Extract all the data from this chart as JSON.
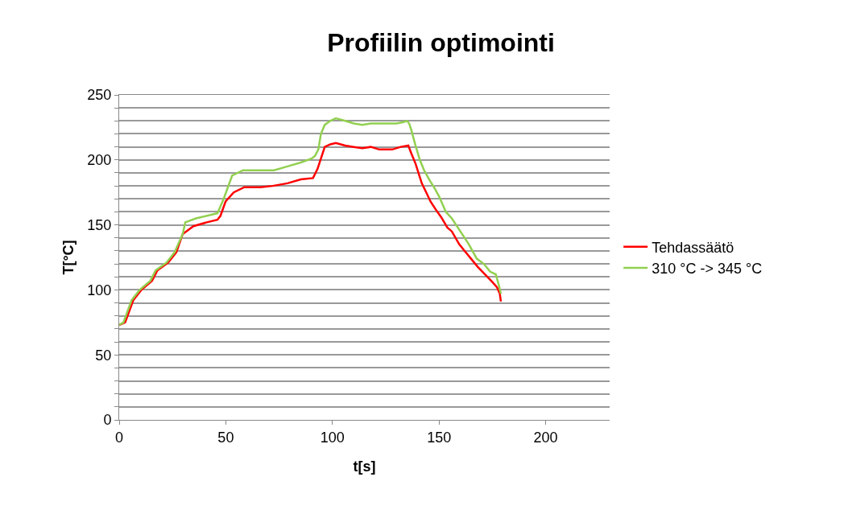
{
  "chart_data": {
    "type": "line",
    "title": "Profiilin optimointi",
    "xlabel": "t[s]",
    "ylabel": "T[°C]",
    "xlim": [
      0,
      230
    ],
    "xticks": [
      0,
      50,
      100,
      150,
      200
    ],
    "ylim": [
      0,
      250
    ],
    "yticks": [
      {
        "value": 0,
        "label": "0"
      },
      {
        "value": 10,
        "label": null
      },
      {
        "value": 20,
        "label": null
      },
      {
        "value": 30,
        "label": null
      },
      {
        "value": 40,
        "label": null
      },
      {
        "value": 50,
        "label": "50"
      },
      {
        "value": 60,
        "label": null
      },
      {
        "value": 70,
        "label": null
      },
      {
        "value": 80,
        "label": null
      },
      {
        "value": 90,
        "label": null
      },
      {
        "value": 100,
        "label": "100"
      },
      {
        "value": 110,
        "label": null
      },
      {
        "value": 120,
        "label": null
      },
      {
        "value": 130,
        "label": null
      },
      {
        "value": 140,
        "label": null
      },
      {
        "value": 150,
        "label": "150"
      },
      {
        "value": 160,
        "label": null
      },
      {
        "value": 170,
        "label": null
      },
      {
        "value": 180,
        "label": null
      },
      {
        "value": 190,
        "label": null
      },
      {
        "value": 200,
        "label": "200"
      },
      {
        "value": 210,
        "label": null
      },
      {
        "value": 220,
        "label": null
      },
      {
        "value": 230,
        "label": null
      },
      {
        "value": 240,
        "label": null
      },
      {
        "value": 250,
        "label": "250"
      }
    ],
    "grid": "y",
    "legend": "right",
    "marker": "none",
    "line_style": "solid",
    "series": [
      {
        "name": "Tehdassäätö",
        "color": "#ff0000",
        "x": [
          0,
          2.8,
          6.6,
          10.4,
          15.4,
          17.9,
          23,
          26.8,
          29.8,
          34.8,
          41.1,
          46.1,
          47.5,
          49.9,
          53.7,
          58.7,
          66.3,
          72,
          78.9,
          85.2,
          90.9,
          93,
          96.4,
          99,
          101.6,
          106,
          110,
          114,
          118,
          122,
          128,
          132,
          135.6,
          137,
          139,
          141.9,
          144,
          146,
          148.8,
          151,
          153.9,
          156,
          159.5,
          162,
          165,
          168,
          172.1,
          175,
          177.2,
          178.5,
          179
        ],
        "values": [
          73,
          75,
          92,
          100,
          107,
          115,
          121,
          129,
          143,
          149,
          152,
          154,
          157,
          168,
          175,
          179,
          179,
          180,
          182,
          185,
          186,
          193,
          210,
          212,
          213,
          211,
          210,
          209,
          210,
          208,
          208,
          210,
          211,
          205,
          197,
          182,
          175,
          168,
          161,
          156,
          148,
          145,
          135,
          130,
          124,
          118,
          111,
          106,
          102,
          97,
          91
        ]
      },
      {
        "name": "310 °C -> 345 °C",
        "color": "#92d050",
        "x": [
          0,
          2,
          5.8,
          9.6,
          14.6,
          17.1,
          22.2,
          26,
          29.8,
          31,
          36,
          46.1,
          49,
          53,
          58.1,
          66.3,
          72.6,
          78.9,
          85.2,
          90.2,
          91.8,
          93.4,
          94.6,
          96.4,
          99,
          101.6,
          106,
          110,
          114,
          118,
          126,
          130,
          133,
          135,
          136,
          137,
          138.8,
          141,
          143,
          145.7,
          148,
          150,
          153.2,
          156,
          158,
          160.8,
          164,
          167.7,
          171,
          174,
          176.6,
          178,
          179
        ],
        "values": [
          73,
          75,
          92,
          100,
          107,
          115,
          121,
          129,
          143,
          152,
          155,
          159,
          170,
          188,
          192,
          192,
          192,
          195,
          198,
          201,
          203,
          208,
          220,
          227,
          230,
          232,
          230,
          228,
          227,
          228,
          228,
          228,
          229,
          230,
          228,
          223,
          212,
          200,
          192,
          184,
          178,
          172,
          160,
          155,
          150,
          143,
          135,
          124,
          120,
          114,
          112,
          104,
          97
        ]
      }
    ]
  }
}
